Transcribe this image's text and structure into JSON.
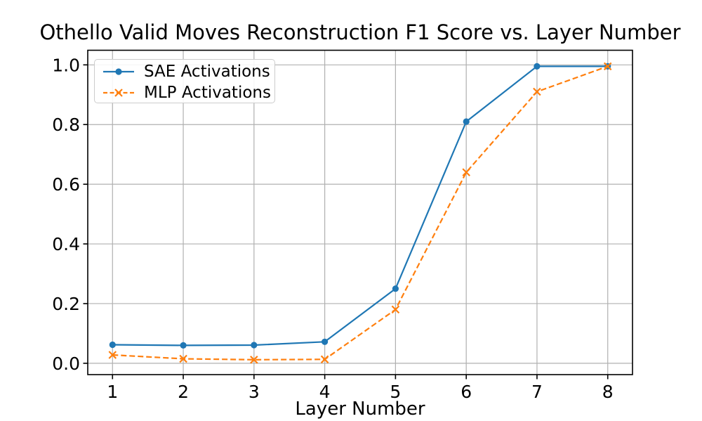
{
  "chart_data": {
    "type": "line",
    "title": "Othello Valid Moves Reconstruction F1 Score vs. Layer Number",
    "xlabel": "Layer Number",
    "ylabel": "",
    "x": [
      1,
      2,
      3,
      4,
      5,
      6,
      7,
      8
    ],
    "x_tick_labels": [
      "1",
      "2",
      "3",
      "4",
      "5",
      "6",
      "7",
      "8"
    ],
    "y_ticks": [
      0.0,
      0.2,
      0.4,
      0.6,
      0.8,
      1.0
    ],
    "y_tick_labels": [
      "0.0",
      "0.2",
      "0.4",
      "0.6",
      "0.8",
      "1.0"
    ],
    "xlim": [
      0.65,
      8.35
    ],
    "ylim": [
      -0.038,
      1.049
    ],
    "grid": true,
    "grid_color": "#b0b0b0",
    "legend_position": "upper left",
    "series": [
      {
        "name": "SAE Activations",
        "color": "#1f77b4",
        "line_style": "solid",
        "marker": "circle",
        "values": [
          0.062,
          0.06,
          0.061,
          0.072,
          0.25,
          0.81,
          0.995,
          0.995
        ]
      },
      {
        "name": "MLP Activations",
        "color": "#ff7f0e",
        "line_style": "dashed",
        "marker": "x",
        "values": [
          0.028,
          0.015,
          0.012,
          0.013,
          0.18,
          0.64,
          0.91,
          0.995
        ]
      }
    ]
  }
}
